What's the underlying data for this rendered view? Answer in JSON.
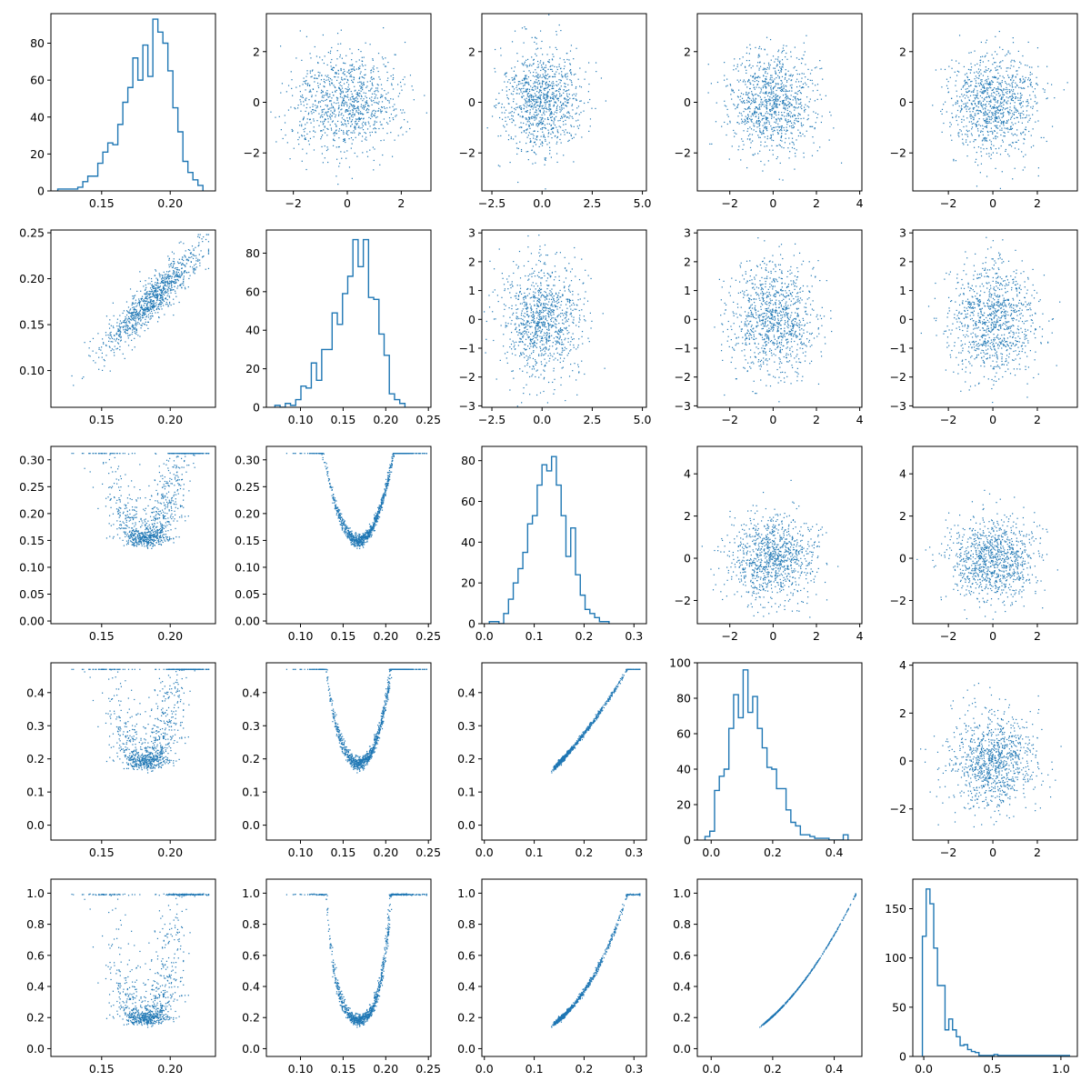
{
  "colors": {
    "series": "#1f77b4",
    "axes": "#000000",
    "background": "#ffffff"
  },
  "chart_data": {
    "type": "scatter",
    "layout": "5x5 corner-style matrix: histograms on diagonal, lower triangle = pairwise scatter of the 5 variables, upper triangle = scatter of standard-normal noise",
    "panels": [
      {
        "row": 0,
        "col": 0,
        "kind": "hist",
        "xlim": [
          0.113,
          0.233
        ],
        "ylim": [
          0,
          96
        ],
        "xticks": [
          0.15,
          0.2
        ],
        "xtick_labels": [
          "0.15",
          "0.20"
        ],
        "yticks": [
          0,
          20,
          40,
          60,
          80
        ],
        "ytick_labels": [
          "0",
          "20",
          "40",
          "60",
          "80"
        ],
        "bin_start": 0.118,
        "bin_width": 0.00365,
        "counts": [
          1,
          1,
          1,
          1,
          2,
          5,
          8,
          8,
          15,
          21,
          26,
          25,
          36,
          48,
          56,
          72,
          60,
          79,
          62,
          93,
          86,
          80,
          65,
          45,
          32,
          16,
          10,
          6,
          3
        ]
      },
      {
        "row": 0,
        "col": 1,
        "kind": "scatter",
        "source": "noise",
        "seed": 101,
        "n": 1000,
        "xlim": [
          -3.0,
          3.1
        ],
        "ylim": [
          -3.5,
          3.5
        ],
        "xticks": [
          -2,
          0,
          2
        ],
        "xtick_labels": [
          "−2",
          "0",
          "2"
        ],
        "yticks": [
          -2,
          0,
          2
        ],
        "ytick_labels": [
          "−2",
          "0",
          "2"
        ]
      },
      {
        "row": 0,
        "col": 2,
        "kind": "scatter",
        "source": "noise",
        "seed": 102,
        "n": 1000,
        "xlim": [
          -3.0,
          5.2
        ],
        "ylim": [
          -3.5,
          3.5
        ],
        "xticks": [
          -2.5,
          0,
          2.5,
          5
        ],
        "xtick_labels": [
          "−2.5",
          "0.0",
          "2.5",
          "5.0"
        ],
        "yticks": [
          -2,
          0,
          2
        ],
        "ytick_labels": [
          "−2",
          "0",
          "2"
        ]
      },
      {
        "row": 0,
        "col": 3,
        "kind": "scatter",
        "source": "noise",
        "seed": 103,
        "n": 1000,
        "xlim": [
          -3.5,
          4.1
        ],
        "ylim": [
          -3.5,
          3.5
        ],
        "xticks": [
          -2,
          0,
          2,
          4
        ],
        "xtick_labels": [
          "−2",
          "0",
          "2",
          "4"
        ],
        "yticks": [
          -2,
          0,
          2
        ],
        "ytick_labels": [
          "−2",
          "0",
          "2"
        ]
      },
      {
        "row": 0,
        "col": 4,
        "kind": "scatter",
        "source": "noise",
        "seed": 104,
        "n": 1000,
        "xlim": [
          -3.6,
          3.8
        ],
        "ylim": [
          -3.5,
          3.5
        ],
        "xticks": [
          -2,
          0,
          2
        ],
        "xtick_labels": [
          "−2",
          "0",
          "2"
        ],
        "yticks": [
          -2,
          0,
          2
        ],
        "ytick_labels": [
          "−2",
          "0",
          "2"
        ]
      },
      {
        "row": 1,
        "col": 0,
        "kind": "scatter",
        "source": "pair",
        "xvar": 0,
        "yvar": 1,
        "xlim": [
          0.113,
          0.233
        ],
        "ylim": [
          0.06,
          0.253
        ],
        "xticks": [
          0.15,
          0.2
        ],
        "xtick_labels": [
          "0.15",
          "0.20"
        ],
        "yticks": [
          0.1,
          0.15,
          0.2,
          0.25
        ],
        "ytick_labels": [
          "0.10",
          "0.15",
          "0.20",
          "0.25"
        ]
      },
      {
        "row": 1,
        "col": 1,
        "kind": "hist",
        "xlim": [
          0.06,
          0.253
        ],
        "ylim": [
          0,
          92
        ],
        "xticks": [
          0.1,
          0.15,
          0.2,
          0.25
        ],
        "xtick_labels": [
          "0.10",
          "0.15",
          "0.20",
          "0.25"
        ],
        "yticks": [
          0,
          20,
          40,
          60,
          80
        ],
        "ytick_labels": [
          "0",
          "20",
          "40",
          "60",
          "80"
        ],
        "bin_start": 0.07,
        "bin_width": 0.0061,
        "counts": [
          1,
          0,
          2,
          1,
          4,
          11,
          10,
          23,
          14,
          30,
          30,
          49,
          43,
          59,
          68,
          87,
          73,
          87,
          57,
          56,
          38,
          27,
          7,
          4,
          2
        ]
      },
      {
        "row": 1,
        "col": 2,
        "kind": "scatter",
        "source": "noise",
        "seed": 112,
        "n": 1000,
        "xlim": [
          -3.0,
          5.2
        ],
        "ylim": [
          -3.05,
          3.1
        ],
        "xticks": [
          -2.5,
          0,
          2.5,
          5
        ],
        "xtick_labels": [
          "−2.5",
          "0.0",
          "2.5",
          "5.0"
        ],
        "yticks": [
          -3,
          -2,
          -1,
          0,
          1,
          2,
          3
        ],
        "ytick_labels": [
          "−3",
          "−2",
          "−1",
          "0",
          "1",
          "2",
          "3"
        ]
      },
      {
        "row": 1,
        "col": 3,
        "kind": "scatter",
        "source": "noise",
        "seed": 113,
        "n": 1000,
        "xlim": [
          -3.5,
          4.1
        ],
        "ylim": [
          -3.05,
          3.1
        ],
        "xticks": [
          -2,
          0,
          2,
          4
        ],
        "xtick_labels": [
          "−2",
          "0",
          "2",
          "4"
        ],
        "yticks": [
          -3,
          -2,
          -1,
          0,
          1,
          2,
          3
        ],
        "ytick_labels": [
          "−3",
          "−2",
          "−1",
          "0",
          "1",
          "2",
          "3"
        ]
      },
      {
        "row": 1,
        "col": 4,
        "kind": "scatter",
        "source": "noise",
        "seed": 114,
        "n": 1000,
        "xlim": [
          -3.6,
          3.8
        ],
        "ylim": [
          -3.05,
          3.1
        ],
        "xticks": [
          -2,
          0,
          2
        ],
        "xtick_labels": [
          "−2",
          "0",
          "2"
        ],
        "yticks": [
          -3,
          -2,
          -1,
          0,
          1,
          2,
          3
        ],
        "ytick_labels": [
          "−3",
          "−2",
          "−1",
          "0",
          "1",
          "2",
          "3"
        ]
      },
      {
        "row": 2,
        "col": 0,
        "kind": "scatter",
        "source": "pair",
        "xvar": 0,
        "yvar": 2,
        "xlim": [
          0.113,
          0.233
        ],
        "ylim": [
          -0.005,
          0.325
        ],
        "xticks": [
          0.15,
          0.2
        ],
        "xtick_labels": [
          "0.15",
          "0.20"
        ],
        "yticks": [
          0,
          0.05,
          0.1,
          0.15,
          0.2,
          0.25,
          0.3
        ],
        "ytick_labels": [
          "0.00",
          "0.05",
          "0.10",
          "0.15",
          "0.20",
          "0.25",
          "0.30"
        ]
      },
      {
        "row": 2,
        "col": 1,
        "kind": "scatter",
        "source": "pair",
        "xvar": 1,
        "yvar": 2,
        "xlim": [
          0.06,
          0.253
        ],
        "ylim": [
          -0.005,
          0.325
        ],
        "xticks": [
          0.1,
          0.15,
          0.2,
          0.25
        ],
        "xtick_labels": [
          "0.10",
          "0.15",
          "0.20",
          "0.25"
        ],
        "yticks": [
          0,
          0.05,
          0.1,
          0.15,
          0.2,
          0.25,
          0.3
        ],
        "ytick_labels": [
          "0.00",
          "0.05",
          "0.10",
          "0.15",
          "0.20",
          "0.25",
          "0.30"
        ]
      },
      {
        "row": 2,
        "col": 2,
        "kind": "hist",
        "xlim": [
          -0.005,
          0.325
        ],
        "ylim": [
          0,
          87
        ],
        "xticks": [
          0,
          0.1,
          0.2,
          0.3
        ],
        "xtick_labels": [
          "0.0",
          "0.1",
          "0.2",
          "0.3"
        ],
        "yticks": [
          0,
          20,
          40,
          60,
          80
        ],
        "ytick_labels": [
          "0",
          "20",
          "40",
          "60",
          "80"
        ],
        "bin_start": 0.01,
        "bin_width": 0.0096,
        "counts": [
          1,
          1,
          0,
          5,
          12,
          20,
          27,
          35,
          49,
          53,
          68,
          78,
          75,
          82,
          68,
          53,
          33,
          47,
          24,
          14,
          7,
          5,
          3,
          1,
          1
        ]
      },
      {
        "row": 2,
        "col": 3,
        "kind": "scatter",
        "source": "noise",
        "seed": 123,
        "n": 1000,
        "xlim": [
          -3.5,
          4.1
        ],
        "ylim": [
          -3.1,
          5.3
        ],
        "xticks": [
          -2,
          0,
          2,
          4
        ],
        "xtick_labels": [
          "−2",
          "0",
          "2",
          "4"
        ],
        "yticks": [
          -2,
          0,
          2,
          4
        ],
        "ytick_labels": [
          "−2",
          "0",
          "2",
          "4"
        ]
      },
      {
        "row": 2,
        "col": 4,
        "kind": "scatter",
        "source": "noise",
        "seed": 124,
        "n": 1000,
        "xlim": [
          -3.6,
          3.8
        ],
        "ylim": [
          -3.1,
          5.3
        ],
        "xticks": [
          -2,
          0,
          2
        ],
        "xtick_labels": [
          "−2",
          "0",
          "2"
        ],
        "yticks": [
          -2,
          0,
          2,
          4
        ],
        "ytick_labels": [
          "−2",
          "0",
          "2",
          "4"
        ]
      },
      {
        "row": 3,
        "col": 0,
        "kind": "scatter",
        "source": "pair",
        "xvar": 0,
        "yvar": 3,
        "xlim": [
          0.113,
          0.233
        ],
        "ylim": [
          -0.045,
          0.49
        ],
        "xticks": [
          0.15,
          0.2
        ],
        "xtick_labels": [
          "0.15",
          "0.20"
        ],
        "yticks": [
          0,
          0.1,
          0.2,
          0.3,
          0.4
        ],
        "ytick_labels": [
          "0.0",
          "0.1",
          "0.2",
          "0.3",
          "0.4"
        ]
      },
      {
        "row": 3,
        "col": 1,
        "kind": "scatter",
        "source": "pair",
        "xvar": 1,
        "yvar": 3,
        "xlim": [
          0.06,
          0.253
        ],
        "ylim": [
          -0.045,
          0.49
        ],
        "xticks": [
          0.1,
          0.15,
          0.2,
          0.25
        ],
        "xtick_labels": [
          "0.10",
          "0.15",
          "0.20",
          "0.25"
        ],
        "yticks": [
          0,
          0.1,
          0.2,
          0.3,
          0.4
        ],
        "ytick_labels": [
          "0.0",
          "0.1",
          "0.2",
          "0.3",
          "0.4"
        ]
      },
      {
        "row": 3,
        "col": 2,
        "kind": "scatter",
        "source": "pair",
        "xvar": 2,
        "yvar": 3,
        "xlim": [
          -0.005,
          0.325
        ],
        "ylim": [
          -0.045,
          0.49
        ],
        "xticks": [
          0,
          0.1,
          0.2,
          0.3
        ],
        "xtick_labels": [
          "0.0",
          "0.1",
          "0.2",
          "0.3"
        ],
        "yticks": [
          0,
          0.1,
          0.2,
          0.3,
          0.4
        ],
        "ytick_labels": [
          "0.0",
          "0.1",
          "0.2",
          "0.3",
          "0.4"
        ]
      },
      {
        "row": 3,
        "col": 3,
        "kind": "hist",
        "xlim": [
          -0.045,
          0.49
        ],
        "ylim": [
          0,
          100
        ],
        "xticks": [
          0,
          0.2,
          0.4
        ],
        "xtick_labels": [
          "0.0",
          "0.2",
          "0.4"
        ],
        "yticks": [
          0,
          20,
          40,
          60,
          80,
          100
        ],
        "ytick_labels": [
          "0",
          "20",
          "40",
          "60",
          "80",
          "100"
        ],
        "bin_start": -0.02,
        "bin_width": 0.0155,
        "counts": [
          2,
          5,
          28,
          36,
          40,
          63,
          82,
          69,
          96,
          72,
          81,
          63,
          52,
          41,
          40,
          29,
          29,
          17,
          10,
          8,
          3,
          3,
          2,
          1,
          1,
          1,
          0,
          0,
          0,
          3
        ]
      },
      {
        "row": 3,
        "col": 4,
        "kind": "scatter",
        "source": "noise",
        "seed": 134,
        "n": 1000,
        "xlim": [
          -3.6,
          3.8
        ],
        "ylim": [
          -3.3,
          4.1
        ],
        "xticks": [
          -2,
          0,
          2
        ],
        "xtick_labels": [
          "−2",
          "0",
          "2"
        ],
        "yticks": [
          -2,
          0,
          2,
          4
        ],
        "ytick_labels": [
          "−2",
          "0",
          "2",
          "4"
        ]
      },
      {
        "row": 4,
        "col": 0,
        "kind": "scatter",
        "source": "pair",
        "xvar": 0,
        "yvar": 4,
        "xlim": [
          0.113,
          0.233
        ],
        "ylim": [
          -0.05,
          1.09
        ],
        "xticks": [
          0.15,
          0.2
        ],
        "xtick_labels": [
          "0.15",
          "0.20"
        ],
        "yticks": [
          0,
          0.2,
          0.4,
          0.6,
          0.8,
          1.0
        ],
        "ytick_labels": [
          "0.0",
          "0.2",
          "0.4",
          "0.6",
          "0.8",
          "1.0"
        ]
      },
      {
        "row": 4,
        "col": 1,
        "kind": "scatter",
        "source": "pair",
        "xvar": 1,
        "yvar": 4,
        "xlim": [
          0.06,
          0.253
        ],
        "ylim": [
          -0.05,
          1.09
        ],
        "xticks": [
          0.1,
          0.15,
          0.2,
          0.25
        ],
        "xtick_labels": [
          "0.10",
          "0.15",
          "0.20",
          "0.25"
        ],
        "yticks": [
          0,
          0.2,
          0.4,
          0.6,
          0.8,
          1.0
        ],
        "ytick_labels": [
          "0.0",
          "0.2",
          "0.4",
          "0.6",
          "0.8",
          "1.0"
        ]
      },
      {
        "row": 4,
        "col": 2,
        "kind": "scatter",
        "source": "pair",
        "xvar": 2,
        "yvar": 4,
        "xlim": [
          -0.005,
          0.325
        ],
        "ylim": [
          -0.05,
          1.09
        ],
        "xticks": [
          0,
          0.1,
          0.2,
          0.3
        ],
        "xtick_labels": [
          "0.0",
          "0.1",
          "0.2",
          "0.3"
        ],
        "yticks": [
          0,
          0.2,
          0.4,
          0.6,
          0.8,
          1.0
        ],
        "ytick_labels": [
          "0.0",
          "0.2",
          "0.4",
          "0.6",
          "0.8",
          "1.0"
        ]
      },
      {
        "row": 4,
        "col": 3,
        "kind": "scatter",
        "source": "pair",
        "xvar": 3,
        "yvar": 4,
        "xlim": [
          -0.045,
          0.49
        ],
        "ylim": [
          -0.05,
          1.09
        ],
        "xticks": [
          0,
          0.2,
          0.4
        ],
        "xtick_labels": [
          "0.0",
          "0.2",
          "0.4"
        ],
        "yticks": [
          0,
          0.2,
          0.4,
          0.6,
          0.8,
          1.0
        ],
        "ytick_labels": [
          "0.0",
          "0.2",
          "0.4",
          "0.6",
          "0.8",
          "1.0"
        ]
      },
      {
        "row": 4,
        "col": 4,
        "kind": "hist",
        "xlim": [
          -0.08,
          1.12
        ],
        "ylim": [
          0,
          180
        ],
        "xticks": [
          0,
          0.5,
          1.0
        ],
        "xtick_labels": [
          "0.0",
          "0.5",
          "1.0"
        ],
        "yticks": [
          0,
          50,
          100,
          150
        ],
        "ytick_labels": [
          "0",
          "50",
          "100",
          "150"
        ],
        "bin_start": -0.01,
        "bin_width": 0.0275,
        "counts": [
          122,
          170,
          155,
          110,
          72,
          72,
          27,
          38,
          27,
          20,
          11,
          12,
          7,
          5,
          4,
          1,
          1,
          1,
          1,
          2,
          1,
          1,
          1,
          1,
          1,
          1,
          1,
          1,
          1,
          1,
          1,
          1,
          1,
          1,
          1,
          1,
          1,
          1,
          1
        ]
      }
    ]
  }
}
